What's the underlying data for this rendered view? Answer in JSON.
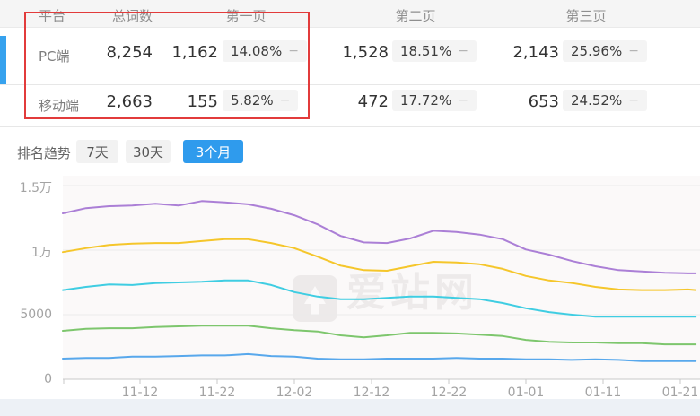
{
  "table": {
    "headers": {
      "platform": "平台",
      "total": "总词数",
      "page1": "第一页",
      "page2": "第二页",
      "page3": "第三页"
    },
    "minus": "−",
    "rows": [
      {
        "platform": "PC端",
        "total": "8,254",
        "p1": "1,162",
        "p1pct": "14.08%",
        "p2": "1,528",
        "p2pct": "18.51%",
        "p3": "2,143",
        "p3pct": "25.96%"
      },
      {
        "platform": "移动端",
        "total": "2,663",
        "p1": "155",
        "p1pct": "5.82%",
        "p2": "472",
        "p2pct": "17.72%",
        "p3": "653",
        "p3pct": "24.52%"
      }
    ]
  },
  "trend": {
    "label": "排名趋势",
    "tabs": [
      {
        "label": "7天",
        "active": false
      },
      {
        "label": "30天",
        "active": false
      },
      {
        "label": "3个月",
        "active": true
      }
    ]
  },
  "watermark": {
    "text": "爱站网"
  },
  "colors": {
    "accent_blue": "#2f9bed",
    "highlight_red": "#e23b3b",
    "row_indicator_blue": "#36a2ee"
  },
  "chart_data": {
    "type": "line",
    "title": "",
    "xlabel": "",
    "ylabel": "",
    "grid": true,
    "legend": "none",
    "ylim": [
      0,
      16000
    ],
    "x_dates": [
      "11-02",
      "11-05",
      "11-08",
      "11-11",
      "11-14",
      "11-17",
      "11-20",
      "11-23",
      "11-26",
      "11-29",
      "12-02",
      "12-05",
      "12-08",
      "12-11",
      "12-14",
      "12-17",
      "12-20",
      "12-23",
      "12-26",
      "12-29",
      "01-01",
      "01-04",
      "01-07",
      "01-10",
      "01-13",
      "01-16",
      "01-19",
      "01-22",
      "01-23"
    ],
    "x_days": [
      0,
      3,
      6,
      9,
      12,
      15,
      18,
      21,
      24,
      27,
      30,
      33,
      36,
      39,
      42,
      45,
      48,
      51,
      54,
      57,
      60,
      63,
      66,
      69,
      72,
      75,
      78,
      81,
      82
    ],
    "yticks": [
      {
        "value": 0,
        "label": "0"
      },
      {
        "value": 5000,
        "label": "5000"
      },
      {
        "value": 10000,
        "label": "1万"
      },
      {
        "value": 15000,
        "label": "1.5万"
      }
    ],
    "xticks": [
      {
        "day": 10,
        "label": "11-12"
      },
      {
        "day": 20,
        "label": "11-22"
      },
      {
        "day": 30,
        "label": "12-02"
      },
      {
        "day": 40,
        "label": "12-12"
      },
      {
        "day": 50,
        "label": "12-22"
      },
      {
        "day": 60,
        "label": "01-01"
      },
      {
        "day": 70,
        "label": "01-11"
      },
      {
        "day": 80,
        "label": "01-21"
      }
    ],
    "series": [
      {
        "name": "series-purple",
        "color": "#ab7fd6",
        "values": [
          12850,
          13250,
          13400,
          13450,
          13600,
          13450,
          13800,
          13700,
          13550,
          13200,
          12700,
          12000,
          11100,
          10600,
          10550,
          10900,
          11500,
          11400,
          11200,
          10850,
          10050,
          9650,
          9150,
          8750,
          8450,
          8350,
          8250,
          8200,
          8200
        ]
      },
      {
        "name": "series-yellow",
        "color": "#f5c62b",
        "values": [
          9850,
          10150,
          10400,
          10500,
          10550,
          10550,
          10700,
          10850,
          10850,
          10550,
          10150,
          9500,
          8800,
          8450,
          8400,
          8750,
          9100,
          9050,
          8900,
          8550,
          8000,
          7650,
          7450,
          7150,
          6950,
          6900,
          6900,
          6950,
          6900
        ]
      },
      {
        "name": "series-cyan",
        "color": "#3fcde2",
        "values": [
          6900,
          7150,
          7350,
          7300,
          7450,
          7500,
          7550,
          7650,
          7650,
          7300,
          6750,
          6400,
          6200,
          6200,
          6300,
          6400,
          6400,
          6300,
          6200,
          5900,
          5500,
          5200,
          5000,
          4850,
          4850,
          4850,
          4850,
          4850,
          4850
        ]
      },
      {
        "name": "series-green",
        "color": "#7dc66d",
        "values": [
          3750,
          3900,
          3950,
          3950,
          4050,
          4100,
          4150,
          4150,
          4150,
          3950,
          3800,
          3700,
          3400,
          3250,
          3400,
          3600,
          3600,
          3550,
          3450,
          3350,
          3050,
          2900,
          2850,
          2850,
          2800,
          2800,
          2700,
          2700,
          2700
        ]
      },
      {
        "name": "series-blue",
        "color": "#58a8ec",
        "values": [
          1600,
          1650,
          1650,
          1750,
          1750,
          1800,
          1850,
          1850,
          1950,
          1800,
          1750,
          1600,
          1550,
          1550,
          1600,
          1600,
          1600,
          1650,
          1600,
          1600,
          1550,
          1550,
          1500,
          1550,
          1500,
          1400,
          1400,
          1400,
          1400
        ]
      }
    ]
  }
}
